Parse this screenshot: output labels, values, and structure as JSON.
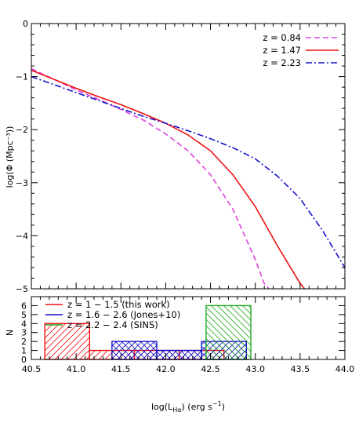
{
  "chart_data": [
    {
      "type": "line",
      "title": "",
      "xlabel": "",
      "ylabel": "log(Φ (Mpc⁻³))",
      "xlim": [
        40.5,
        44.0
      ],
      "ylim": [
        -5,
        0
      ],
      "xticks": [
        40.5,
        41.0,
        41.5,
        42.0,
        42.5,
        43.0,
        43.5,
        44.0
      ],
      "yticks": [
        -5,
        -4,
        -3,
        -2,
        -1,
        0
      ],
      "ytick_labels": [
        "−5",
        "−4",
        "−3",
        "−2",
        "−1",
        "0"
      ],
      "legend_position": "top-right",
      "series": [
        {
          "name": "z = 0.84",
          "color": "#e040e0",
          "style": "dashed",
          "x": [
            40.5,
            40.75,
            41.0,
            41.25,
            41.5,
            41.75,
            42.0,
            42.25,
            42.5,
            42.75,
            43.0,
            43.1,
            43.15
          ],
          "y": [
            -0.85,
            -1.05,
            -1.25,
            -1.43,
            -1.62,
            -1.82,
            -2.08,
            -2.4,
            -2.85,
            -3.5,
            -4.45,
            -4.9,
            -5.0
          ]
        },
        {
          "name": "z = 1.47",
          "color": "#ee1111",
          "style": "solid",
          "x": [
            40.5,
            40.75,
            41.0,
            41.25,
            41.5,
            41.75,
            42.0,
            42.25,
            42.5,
            42.75,
            43.0,
            43.25,
            43.5,
            43.55
          ],
          "y": [
            -0.88,
            -1.05,
            -1.22,
            -1.38,
            -1.53,
            -1.7,
            -1.88,
            -2.1,
            -2.4,
            -2.85,
            -3.45,
            -4.2,
            -4.9,
            -5.0
          ]
        },
        {
          "name": "z = 2.23",
          "color": "#1111cc",
          "style": "dashdot",
          "x": [
            40.5,
            40.75,
            41.0,
            41.25,
            41.5,
            41.75,
            42.0,
            42.25,
            42.5,
            42.75,
            43.0,
            43.25,
            43.5,
            43.75,
            44.0,
            44.1
          ],
          "y": [
            -1.0,
            -1.15,
            -1.3,
            -1.45,
            -1.6,
            -1.75,
            -1.88,
            -2.02,
            -2.17,
            -2.34,
            -2.55,
            -2.88,
            -3.3,
            -3.9,
            -4.6,
            -5.0
          ]
        }
      ]
    },
    {
      "type": "bar",
      "title": "",
      "xlabel": "log(L_Hα) (erg s⁻¹)",
      "xlabel_parts": {
        "pre": "log(L",
        "sub": "Hα",
        "mid": ") (erg s",
        "sup": "−1",
        "post": ")"
      },
      "ylabel": "N",
      "xlim": [
        40.5,
        44.0
      ],
      "ylim": [
        0,
        7
      ],
      "xticks": [
        40.5,
        41.0,
        41.5,
        42.0,
        42.5,
        43.0,
        43.5,
        44.0
      ],
      "xtick_labels": [
        "40.5",
        "41.0",
        "41.5",
        "42.0",
        "42.5",
        "43.0",
        "43.5",
        "44.0"
      ],
      "yticks": [
        0,
        1,
        2,
        3,
        4,
        5,
        6
      ],
      "ytick_labels": [
        "0",
        "1",
        "2",
        "3",
        "4",
        "5",
        "6"
      ],
      "legend_position": "top-left",
      "series": [
        {
          "name": "z = 1 − 1.5 (this work)",
          "color": "#ee1111",
          "hatch": "down",
          "bins": [
            {
              "x0": 40.65,
              "x1": 41.15,
              "count": 4
            },
            {
              "x0": 41.15,
              "x1": 41.65,
              "count": 1
            },
            {
              "x0": 41.65,
              "x1": 42.15,
              "count": 1
            },
            {
              "x0": 42.15,
              "x1": 42.65,
              "count": 1
            }
          ]
        },
        {
          "name": "z = 1.6 − 2.6 (Jones+10)",
          "color": "#1111cc",
          "hatch": "cross",
          "bins": [
            {
              "x0": 41.4,
              "x1": 41.9,
              "count": 2
            },
            {
              "x0": 41.9,
              "x1": 42.4,
              "count": 1
            },
            {
              "x0": 42.4,
              "x1": 42.9,
              "count": 2
            }
          ]
        },
        {
          "name": "z = 2.2 − 2.4 (SINS)",
          "color": "#22aa22",
          "hatch": "up",
          "bins": [
            {
              "x0": 42.45,
              "x1": 42.95,
              "count": 6
            }
          ]
        }
      ]
    }
  ]
}
